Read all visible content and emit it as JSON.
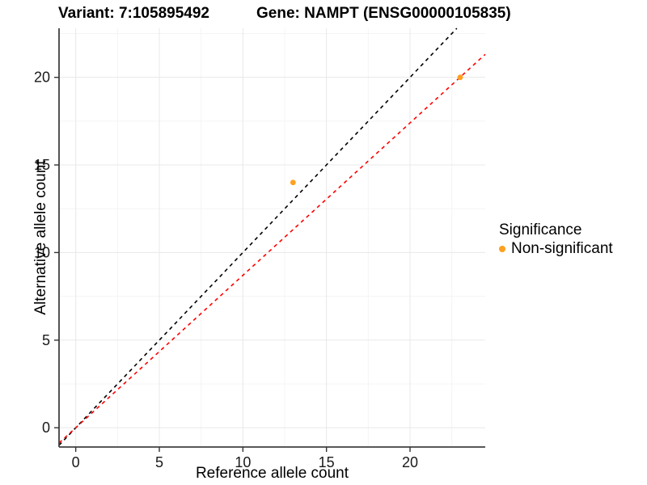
{
  "titles": {
    "variant": "Variant: 7:105895492",
    "gene": "Gene: NAMPT (ENSG00000105835)"
  },
  "legend": {
    "title": "Significance",
    "items": [
      {
        "label": "Non-significant",
        "color": "#FFA01E"
      }
    ]
  },
  "chart_data": {
    "type": "scatter",
    "title": "Variant: 7:105895492   Gene: NAMPT (ENSG00000105835)",
    "xlabel": "Reference allele count",
    "ylabel": "Alternative allele count",
    "xlim": [
      -1.0,
      24.5
    ],
    "ylim": [
      -1.1,
      22.8
    ],
    "x_ticks": [
      0,
      5,
      10,
      15,
      20
    ],
    "y_ticks": [
      0,
      5,
      10,
      15,
      20
    ],
    "x_minor_ticks": [
      2.5,
      7.5,
      12.5,
      17.5,
      22.5
    ],
    "y_minor_ticks": [
      2.5,
      7.5,
      12.5,
      17.5,
      22.5
    ],
    "grid": true,
    "legend_position": "right",
    "series": [
      {
        "name": "Non-significant",
        "color": "#FFA01E",
        "points": [
          {
            "x": 13,
            "y": 14
          },
          {
            "x": 23,
            "y": 20
          }
        ]
      }
    ],
    "reference_lines": [
      {
        "name": "identity-line",
        "slope": 1.0,
        "intercept": 0,
        "color": "#000000",
        "style": "dashed"
      },
      {
        "name": "fitted-ratio-line",
        "slope": 0.87,
        "intercept": 0,
        "color": "#FF0000",
        "style": "dashed"
      }
    ],
    "colors": {
      "point": "#FFA01E",
      "grid_major": "#E8E8E8",
      "grid_minor": "#F4F4F4",
      "axis_line": "#404040",
      "tick_text": "#1A1A1A"
    }
  }
}
